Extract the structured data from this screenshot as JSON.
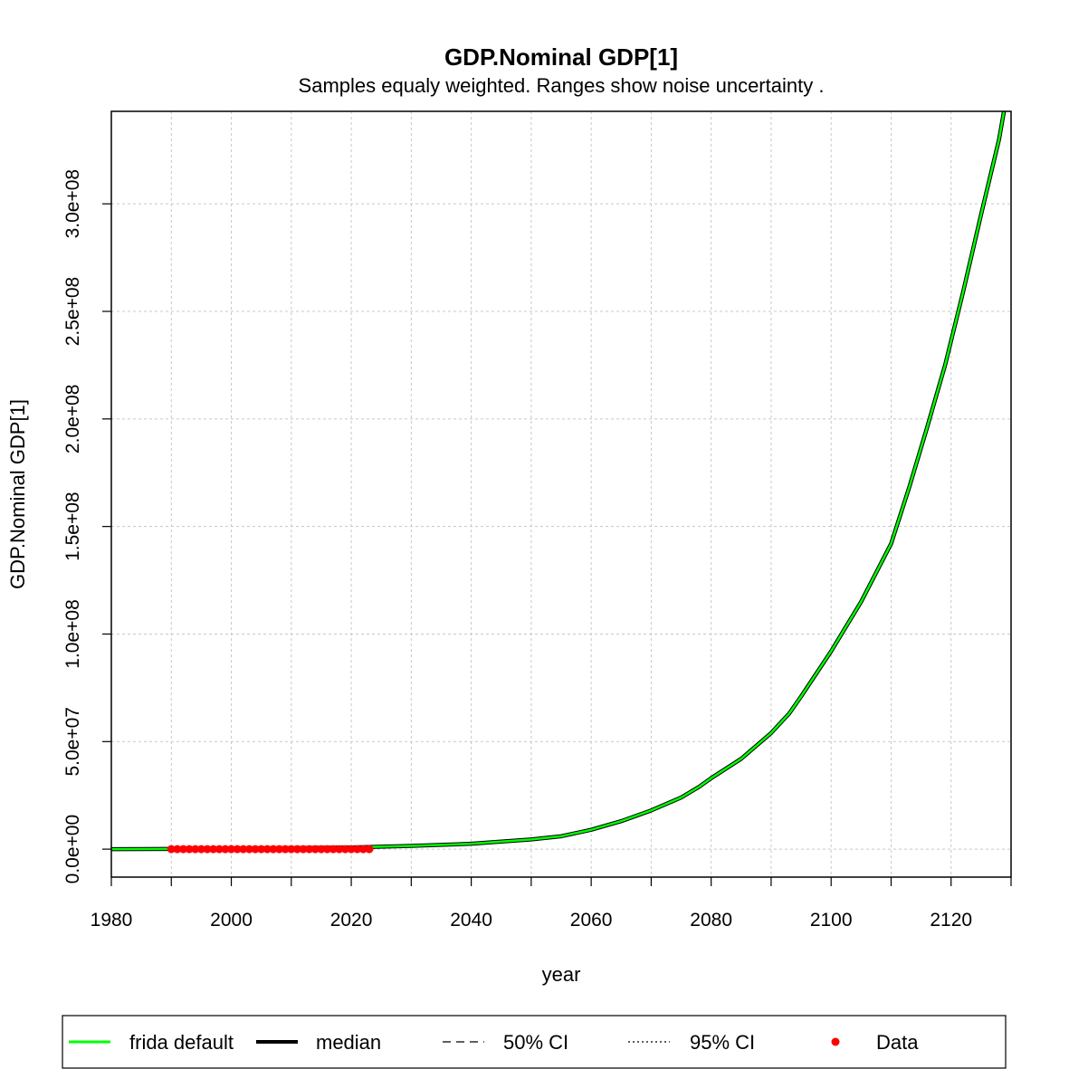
{
  "chart_data": {
    "type": "line",
    "title": "GDP.Nominal GDP[1]",
    "subtitle": "Samples equaly weighted. Ranges show  noise uncertainty .",
    "xlabel": "year",
    "ylabel": "GDP.Nominal GDP[1]",
    "xlim": [
      1980,
      2130
    ],
    "ylim": [
      -13000000,
      343000000
    ],
    "xticks": [
      1980,
      2000,
      2020,
      2040,
      2060,
      2080,
      2100,
      2120
    ],
    "xtick_labels": [
      "1980",
      "2000",
      "2020",
      "2040",
      "2060",
      "2080",
      "2100",
      "2120"
    ],
    "yticks": [
      0,
      50000000,
      100000000,
      150000000,
      200000000,
      250000000,
      300000000
    ],
    "ytick_labels": [
      "0.0e+00",
      "5.0e+07",
      "1.0e+08",
      "1.5e+08",
      "2.0e+08",
      "2.5e+08",
      "3.0e+08"
    ],
    "grid": true,
    "colors": {
      "frida_default": "#00ff00",
      "median": "#000000",
      "data": "#ff0000",
      "grid": "#c8c8c8"
    },
    "series": [
      {
        "name": "median",
        "x": [
          1980,
          1990,
          2000,
          2010,
          2020,
          2030,
          2040,
          2050,
          2055,
          2060,
          2065,
          2070,
          2075,
          2078,
          2080,
          2085,
          2090,
          2093,
          2095,
          2100,
          2105,
          2110,
          2113,
          2116,
          2119,
          2122,
          2125,
          2128,
          2130
        ],
        "y": [
          0,
          100000,
          300000,
          500000,
          800000,
          1500000,
          2500000,
          4500000,
          6000000,
          9000000,
          13000000,
          18000000,
          24000000,
          29000000,
          33000000,
          42000000,
          54000000,
          63000000,
          71000000,
          92000000,
          115000000,
          142000000,
          168000000,
          196000000,
          225000000,
          259000000,
          295000000,
          330000000,
          362000000
        ]
      },
      {
        "name": "frida default",
        "x": [
          1980,
          1990,
          2000,
          2010,
          2020,
          2030,
          2040,
          2050,
          2055,
          2060,
          2065,
          2070,
          2075,
          2078,
          2080,
          2085,
          2090,
          2093,
          2095,
          2100,
          2105,
          2110,
          2113,
          2116,
          2119,
          2122,
          2125,
          2128,
          2130
        ],
        "y": [
          0,
          100000,
          300000,
          500000,
          800000,
          1500000,
          2500000,
          4500000,
          6000000,
          9000000,
          13000000,
          18000000,
          24000000,
          29000000,
          33000000,
          42000000,
          54000000,
          63000000,
          71000000,
          92000000,
          115000000,
          142000000,
          168000000,
          196000000,
          225000000,
          259000000,
          295000000,
          330000000,
          362000000
        ]
      },
      {
        "name": "Data",
        "x": [
          1990,
          1991,
          1992,
          1993,
          1994,
          1995,
          1996,
          1997,
          1998,
          1999,
          2000,
          2001,
          2002,
          2003,
          2004,
          2005,
          2006,
          2007,
          2008,
          2009,
          2010,
          2011,
          2012,
          2013,
          2014,
          2015,
          2016,
          2017,
          2018,
          2019,
          2020,
          2021,
          2022,
          2023
        ],
        "y": [
          0,
          0,
          0,
          0,
          0,
          0,
          0,
          0,
          0,
          0,
          0,
          0,
          0,
          0,
          0,
          0,
          0,
          0,
          0,
          0,
          0,
          0,
          0,
          0,
          0,
          0,
          0,
          0,
          0,
          0,
          0,
          0,
          0,
          0
        ]
      }
    ],
    "legend": {
      "placement": "bottom",
      "entries": [
        {
          "label": "frida default",
          "style": "solid-green"
        },
        {
          "label": "median",
          "style": "solid-black-thick"
        },
        {
          "label": "50% CI",
          "style": "dashed"
        },
        {
          "label": "95% CI",
          "style": "dotted"
        },
        {
          "label": "Data",
          "style": "red-point"
        }
      ]
    }
  }
}
